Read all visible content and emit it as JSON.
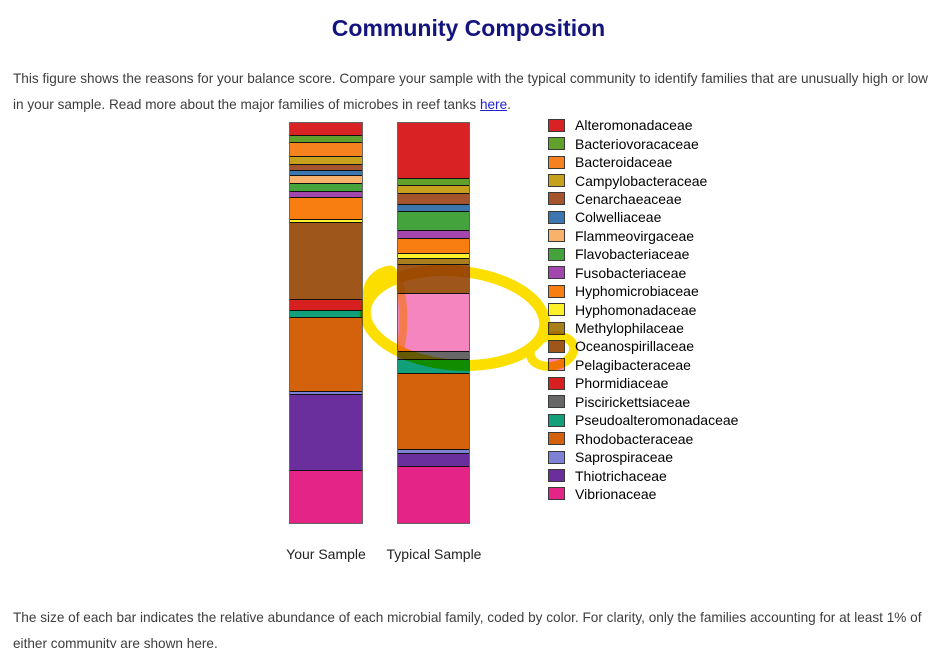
{
  "page": {
    "title": "Community Composition",
    "intro_before_link": "This figure shows the reasons for your balance score. Compare your sample with the typical community to identify families that are unusually high or low in your sample. Read more about the major families of microbes in reef tanks ",
    "intro_link_text": "here",
    "intro_after_link": ".",
    "footer_text": "The size of each bar indicates the relative abundance of each microbial family, coded by color. For clarity, only the families accounting for at least 1% of either community are shown here.",
    "title_color": "#14147E",
    "link_color": "#2222CC"
  },
  "chart_data": {
    "type": "bar",
    "subtype": "stacked-percentage",
    "categories": [
      "Your Sample",
      "Typical Sample"
    ],
    "unit": "percent of community",
    "legend_position": "right",
    "annotation_note": "hand-drawn yellow highlighter circling the Pelagibacteraceae segment of the Typical Sample bar and the Pelagibacteraceae legend swatch",
    "highlight_color": "#FCDF00",
    "families": [
      {
        "name": "Alteromonadaceae",
        "color": "#D92223",
        "your_sample_pct": 3.0,
        "typical_sample_pct": 13.8
      },
      {
        "name": "Bacteriovoracaceae",
        "color": "#61A02B",
        "your_sample_pct": 1.8,
        "typical_sample_pct": 1.8
      },
      {
        "name": "Bacteroidaceae",
        "color": "#F5821F",
        "your_sample_pct": 3.5,
        "typical_sample_pct": 0
      },
      {
        "name": "Campylobacteraceae",
        "color": "#C7A11B",
        "your_sample_pct": 2.0,
        "typical_sample_pct": 1.8
      },
      {
        "name": "Cenarchaeaceae",
        "color": "#A5552D",
        "your_sample_pct": 1.5,
        "typical_sample_pct": 2.8
      },
      {
        "name": "Colwelliaceae",
        "color": "#3B76AF",
        "your_sample_pct": 1.2,
        "typical_sample_pct": 1.8
      },
      {
        "name": "Flammeovirgaceae",
        "color": "#F9B26B",
        "your_sample_pct": 2.0,
        "typical_sample_pct": 0
      },
      {
        "name": "Flavobacteriaceae",
        "color": "#45A33E",
        "your_sample_pct": 2.0,
        "typical_sample_pct": 4.8
      },
      {
        "name": "Fusobacteriaceae",
        "color": "#A346AE",
        "your_sample_pct": 1.5,
        "typical_sample_pct": 2.0
      },
      {
        "name": "Hyphomicrobiaceae",
        "color": "#F87E11",
        "your_sample_pct": 5.5,
        "typical_sample_pct": 3.8
      },
      {
        "name": "Hyphomonadaceae",
        "color": "#FBF02A",
        "your_sample_pct": 0.8,
        "typical_sample_pct": 1.2
      },
      {
        "name": "Methylophilaceae",
        "color": "#A87F1C",
        "your_sample_pct": 0,
        "typical_sample_pct": 1.5
      },
      {
        "name": "Oceanospirillaceae",
        "color": "#9F561B",
        "your_sample_pct": 19.2,
        "typical_sample_pct": 7.2
      },
      {
        "name": "Pelagibacteraceae",
        "color": "#F585BF",
        "your_sample_pct": 0,
        "typical_sample_pct": 14.5
      },
      {
        "name": "Phormidiaceae",
        "color": "#D61F1F",
        "your_sample_pct": 2.8,
        "typical_sample_pct": 0
      },
      {
        "name": "Piscirickettsiaceae",
        "color": "#676767",
        "your_sample_pct": 0,
        "typical_sample_pct": 2.2
      },
      {
        "name": "Pseudoalteromonadaceae",
        "color": "#11A07A",
        "your_sample_pct": 1.8,
        "typical_sample_pct": 3.5
      },
      {
        "name": "Rhodobacteraceae",
        "color": "#D4610B",
        "your_sample_pct": 18.5,
        "typical_sample_pct": 18.8
      },
      {
        "name": "Saprospiraceae",
        "color": "#7F82D4",
        "your_sample_pct": 0.8,
        "typical_sample_pct": 1.2
      },
      {
        "name": "Thiotrichaceae",
        "color": "#6A2F9D",
        "your_sample_pct": 19.0,
        "typical_sample_pct": 3.2
      },
      {
        "name": "Vibrionaceae",
        "color": "#E42487",
        "your_sample_pct": 13.2,
        "typical_sample_pct": 14.2
      }
    ]
  }
}
